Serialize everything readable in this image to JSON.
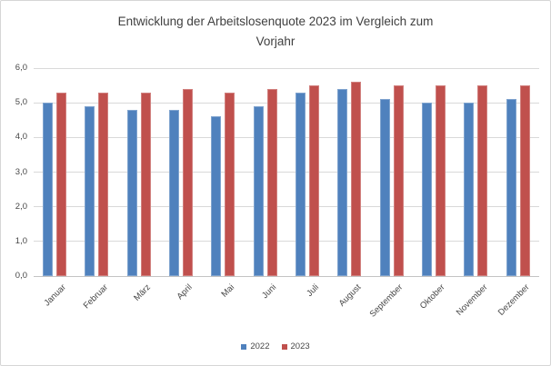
{
  "chart": {
    "title_lines": [
      "Entwicklung der Arbeitslosenquote 2023 im Vergleich zum",
      "Vorjahr"
    ]
  },
  "chart_data": {
    "type": "bar",
    "title": "Entwicklung der Arbeitslosenquote 2023 im Vergleich zum Vorjahr",
    "categories": [
      "Januar",
      "Februar",
      "März",
      "April",
      "Mai",
      "Juni",
      "Juli",
      "August",
      "September",
      "Oktober",
      "November",
      "Dezember"
    ],
    "series": [
      {
        "name": "2022",
        "color": "#4f81bd",
        "values": [
          5.0,
          4.9,
          4.8,
          4.8,
          4.6,
          4.9,
          5.3,
          5.4,
          5.1,
          5.0,
          5.0,
          5.1
        ]
      },
      {
        "name": "2023",
        "color": "#c0504d",
        "values": [
          5.3,
          5.3,
          5.3,
          5.4,
          5.3,
          5.4,
          5.5,
          5.6,
          5.5,
          5.5,
          5.5,
          5.5
        ]
      }
    ],
    "xlabel": "",
    "ylabel": "",
    "ylim": [
      0,
      6
    ],
    "ytick_labels": [
      "0,0",
      "1,0",
      "2,0",
      "3,0",
      "4,0",
      "5,0",
      "6,0"
    ],
    "grid": true,
    "legend_position": "bottom",
    "legend": [
      "2022",
      "2023"
    ]
  },
  "colors": {
    "gridline": "#d9d9d9",
    "axis_line": "#c3c3c3",
    "title_text": "#3f3f3f",
    "label_text": "#474747",
    "border": "#d6d6d6",
    "background": "#ffffff"
  }
}
